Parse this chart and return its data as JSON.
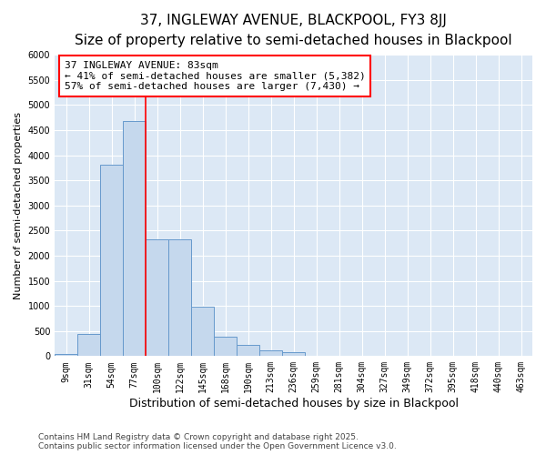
{
  "title1": "37, INGLEWAY AVENUE, BLACKPOOL, FY3 8JJ",
  "title2": "Size of property relative to semi-detached houses in Blackpool",
  "xlabel": "Distribution of semi-detached houses by size in Blackpool",
  "ylabel": "Number of semi-detached properties",
  "categories": [
    "9sqm",
    "31sqm",
    "54sqm",
    "77sqm",
    "100sqm",
    "122sqm",
    "145sqm",
    "168sqm",
    "190sqm",
    "213sqm",
    "236sqm",
    "259sqm",
    "281sqm",
    "304sqm",
    "327sqm",
    "349sqm",
    "372sqm",
    "395sqm",
    "418sqm",
    "440sqm",
    "463sqm"
  ],
  "values": [
    50,
    450,
    3820,
    4680,
    2320,
    2320,
    980,
    390,
    230,
    110,
    80,
    0,
    0,
    0,
    0,
    0,
    0,
    0,
    0,
    0,
    0
  ],
  "bar_color": "#c5d8ed",
  "bar_edge_color": "#6699cc",
  "vline_color": "red",
  "vline_x_index": 3,
  "annotation_title": "37 INGLEWAY AVENUE: 83sqm",
  "annotation_line1": "← 41% of semi-detached houses are smaller (5,382)",
  "annotation_line2": "57% of semi-detached houses are larger (7,430) →",
  "annotation_box_facecolor": "white",
  "annotation_box_edgecolor": "red",
  "ylim": [
    0,
    6000
  ],
  "yticks": [
    0,
    500,
    1000,
    1500,
    2000,
    2500,
    3000,
    3500,
    4000,
    4500,
    5000,
    5500,
    6000
  ],
  "footnote": "Contains HM Land Registry data © Crown copyright and database right 2025.\nContains public sector information licensed under the Open Government Licence v3.0.",
  "fig_background": "#ffffff",
  "plot_background": "#dce8f5",
  "title1_fontsize": 11,
  "title2_fontsize": 9,
  "ylabel_fontsize": 8,
  "xlabel_fontsize": 9,
  "tick_fontsize": 7,
  "annotation_fontsize": 8,
  "footnote_fontsize": 6.5,
  "grid_color": "#ffffff",
  "grid_linewidth": 0.8
}
